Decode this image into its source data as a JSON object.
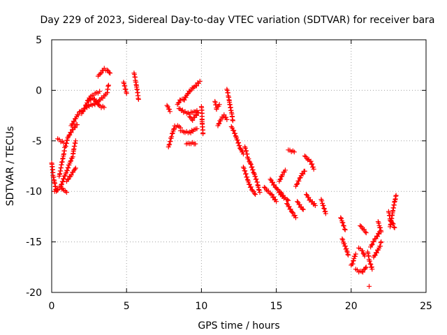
{
  "chart_data": {
    "type": "scatter",
    "title": "Day 229 of 2023, Sidereal Day-to-day VTEC variation (SDTVAR) for receiver bara",
    "xlabel": "GPS time / hours",
    "ylabel": "SDTVAR / TECUs",
    "xlim": [
      0,
      25
    ],
    "ylim": [
      -20,
      5
    ],
    "xticks": [
      0,
      5,
      10,
      15,
      20,
      25
    ],
    "yticks": [
      -20,
      -15,
      -10,
      -5,
      0,
      5
    ],
    "grid": true,
    "marker": "+",
    "series": [
      {
        "name": "SDTVAR",
        "color": "#ff0000",
        "segments": [
          {
            "x": [
              0.0,
              0.1,
              0.2,
              0.3,
              0.4
            ],
            "y": [
              -7.2,
              -8.5,
              -9.3,
              -10.0,
              -9.8
            ]
          },
          {
            "x": [
              0.2,
              0.4,
              0.6,
              0.8,
              1.0
            ],
            "y": [
              -10.0,
              -9.8,
              -9.6,
              -9.9,
              -10.1
            ]
          },
          {
            "x": [
              0.5,
              0.7,
              0.9,
              1.1,
              1.3,
              1.5,
              1.7
            ],
            "y": [
              -8.5,
              -7.0,
              -5.6,
              -4.6,
              -4.1,
              -3.7,
              -3.4
            ]
          },
          {
            "x": [
              1.3,
              1.5,
              1.7,
              1.9,
              2.0
            ],
            "y": [
              -3.5,
              -3.0,
              -2.5,
              -2.1,
              -2.0
            ]
          },
          {
            "x": [
              0.6,
              0.8,
              1.0,
              1.2,
              1.4,
              1.6
            ],
            "y": [
              -9.5,
              -8.7,
              -8.0,
              -7.2,
              -6.5,
              -5.0
            ]
          },
          {
            "x": [
              0.4,
              0.6,
              0.8
            ],
            "y": [
              -4.8,
              -5.0,
              -5.2
            ]
          },
          {
            "x": [
              1.0,
              1.3,
              1.6
            ],
            "y": [
              -9.0,
              -8.3,
              -7.7
            ]
          },
          {
            "x": [
              2.0,
              2.2,
              2.4,
              2.6,
              2.8,
              3.0,
              3.2
            ],
            "y": [
              -2.3,
              -1.7,
              -1.1,
              -0.6,
              -0.4,
              -0.3,
              -0.1
            ]
          },
          {
            "x": [
              2.2,
              2.5,
              2.8,
              3.1,
              3.4,
              3.7,
              3.8
            ],
            "y": [
              -1.8,
              -1.5,
              -1.4,
              -1.1,
              -0.7,
              -0.3,
              0.5
            ]
          },
          {
            "x": [
              2.4,
              2.8,
              3.2,
              3.5
            ],
            "y": [
              -1.0,
              -0.8,
              -1.6,
              -1.7
            ]
          },
          {
            "x": [
              3.1,
              3.3,
              3.5,
              3.7,
              3.9
            ],
            "y": [
              1.4,
              1.8,
              2.1,
              2.0,
              1.7
            ]
          },
          {
            "x": [
              4.8,
              4.9,
              5.0
            ],
            "y": [
              0.8,
              0.2,
              -0.3
            ]
          },
          {
            "x": [
              5.5,
              5.6,
              5.7,
              5.8
            ],
            "y": [
              1.7,
              0.9,
              0.0,
              -0.9
            ]
          },
          {
            "x": [
              7.7,
              7.9
            ],
            "y": [
              -1.5,
              -2.1
            ]
          },
          {
            "x": [
              7.8,
              8.0,
              8.2,
              8.4,
              8.6
            ],
            "y": [
              -5.6,
              -4.5,
              -3.6,
              -3.5,
              -3.7
            ]
          },
          {
            "x": [
              8.6,
              8.9,
              9.2,
              9.5,
              9.7
            ],
            "y": [
              -4.0,
              -4.1,
              -4.2,
              -3.9,
              -3.8
            ]
          },
          {
            "x": [
              8.4,
              8.6,
              8.8,
              9.0,
              9.3,
              9.6,
              9.9
            ],
            "y": [
              -1.4,
              -0.9,
              -1.0,
              -0.5,
              0.1,
              0.4,
              0.9
            ]
          },
          {
            "x": [
              8.5,
              8.8,
              9.1,
              9.4,
              9.7
            ],
            "y": [
              -1.8,
              -2.1,
              -2.3,
              -2.2,
              -2.0
            ]
          },
          {
            "x": [
              9.2,
              9.4,
              9.6,
              9.8
            ],
            "y": [
              -2.6,
              -2.9,
              -2.5,
              -2.2
            ]
          },
          {
            "x": [
              9.0,
              9.3,
              9.6
            ],
            "y": [
              -5.3,
              -5.2,
              -5.3
            ]
          },
          {
            "x": [
              10.0,
              10.1
            ],
            "y": [
              -1.6,
              -4.3
            ]
          },
          {
            "x": [
              10.9,
              11.0,
              11.2
            ],
            "y": [
              -1.1,
              -1.8,
              -1.4
            ]
          },
          {
            "x": [
              11.1,
              11.3,
              11.5,
              11.7
            ],
            "y": [
              -3.5,
              -2.8,
              -2.5,
              -2.9
            ]
          },
          {
            "x": [
              11.7,
              11.8,
              11.9,
              12.0,
              12.1
            ],
            "y": [
              0.1,
              -0.6,
              -1.5,
              -2.2,
              -3.0
            ]
          },
          {
            "x": [
              12.0,
              12.2,
              12.4,
              12.6,
              12.8
            ],
            "y": [
              -3.6,
              -4.2,
              -5.0,
              -5.8,
              -6.3
            ]
          },
          {
            "x": [
              12.9,
              13.1,
              13.3,
              13.5,
              13.7,
              13.9
            ],
            "y": [
              -5.6,
              -6.7,
              -7.4,
              -8.2,
              -9.0,
              -10.1
            ]
          },
          {
            "x": [
              12.8,
              13.0,
              13.2,
              13.4,
              13.6
            ],
            "y": [
              -7.6,
              -8.5,
              -9.4,
              -9.9,
              -10.3
            ]
          },
          {
            "x": [
              14.2,
              14.4,
              14.7,
              15.0
            ],
            "y": [
              -9.6,
              -9.9,
              -10.4,
              -11.0
            ]
          },
          {
            "x": [
              14.6,
              14.8,
              15.1,
              15.4
            ],
            "y": [
              -8.8,
              -9.3,
              -9.9,
              -10.5
            ]
          },
          {
            "x": [
              15.2,
              15.4,
              15.6
            ],
            "y": [
              -9.0,
              -8.3,
              -7.9
            ]
          },
          {
            "x": [
              15.3,
              15.5,
              15.8
            ],
            "y": [
              -10.1,
              -10.6,
              -10.9
            ]
          },
          {
            "x": [
              15.8,
              16.0,
              16.2
            ],
            "y": [
              -5.9,
              -6.0,
              -6.1
            ]
          },
          {
            "x": [
              15.7,
              15.9,
              16.1,
              16.3
            ],
            "y": [
              -11.2,
              -11.7,
              -12.2,
              -12.6
            ]
          },
          {
            "x": [
              16.3,
              16.5,
              16.7,
              16.9
            ],
            "y": [
              -9.5,
              -8.9,
              -8.3,
              -8.0
            ]
          },
          {
            "x": [
              16.4,
              16.6,
              16.8
            ],
            "y": [
              -11.0,
              -11.5,
              -11.8
            ]
          },
          {
            "x": [
              16.9,
              17.1,
              17.3,
              17.5
            ],
            "y": [
              -6.5,
              -6.8,
              -7.1,
              -7.8
            ]
          },
          {
            "x": [
              17.0,
              17.2,
              17.4,
              17.6
            ],
            "y": [
              -10.3,
              -10.8,
              -11.1,
              -11.4
            ]
          },
          {
            "x": [
              18.0,
              18.1,
              18.2,
              18.3
            ],
            "y": [
              -10.8,
              -11.3,
              -11.8,
              -12.2
            ]
          },
          {
            "x": [
              19.3,
              19.4,
              19.5,
              19.6
            ],
            "y": [
              -12.6,
              -13.0,
              -13.5,
              -13.8
            ]
          },
          {
            "x": [
              19.4,
              19.5,
              19.6,
              19.7,
              19.8
            ],
            "y": [
              -14.7,
              -15.1,
              -15.5,
              -15.9,
              -16.3
            ]
          },
          {
            "x": [
              20.0,
              20.1,
              20.2,
              20.3
            ],
            "y": [
              -17.3,
              -17.1,
              -16.5,
              -16.2
            ]
          },
          {
            "x": [
              20.3,
              20.5,
              20.7,
              20.9,
              21.0
            ],
            "y": [
              -17.7,
              -17.9,
              -18.0,
              -17.7,
              -17.5
            ]
          },
          {
            "x": [
              20.5,
              20.7,
              20.9
            ],
            "y": [
              -15.6,
              -15.8,
              -16.4
            ]
          },
          {
            "x": [
              20.6,
              20.8,
              21.0
            ],
            "y": [
              -13.4,
              -13.7,
              -14.1
            ]
          },
          {
            "x": [
              21.1,
              21.2,
              21.3,
              21.4
            ],
            "y": [
              -16.0,
              -16.8,
              -17.3,
              -17.7
            ]
          },
          {
            "x": [
              21.3,
              21.5,
              21.7,
              21.9
            ],
            "y": [
              -15.5,
              -14.9,
              -14.5,
              -14.0
            ]
          },
          {
            "x": [
              21.5,
              21.7,
              21.9,
              22.0
            ],
            "y": [
              -16.5,
              -16.0,
              -15.5,
              -15.0
            ]
          },
          {
            "x": [
              21.8,
              21.9,
              22.0
            ],
            "y": [
              -13.0,
              -13.5,
              -14.0
            ]
          },
          {
            "x": [
              21.2
            ],
            "y": [
              -19.4
            ]
          },
          {
            "x": [
              22.6,
              22.7,
              22.8,
              22.9,
              23.0
            ],
            "y": [
              -13.5,
              -12.6,
              -11.7,
              -11.0,
              -10.4
            ]
          },
          {
            "x": [
              22.5,
              22.6,
              22.8,
              22.9
            ],
            "y": [
              -12.0,
              -12.8,
              -13.3,
              -13.6
            ]
          }
        ]
      }
    ]
  }
}
